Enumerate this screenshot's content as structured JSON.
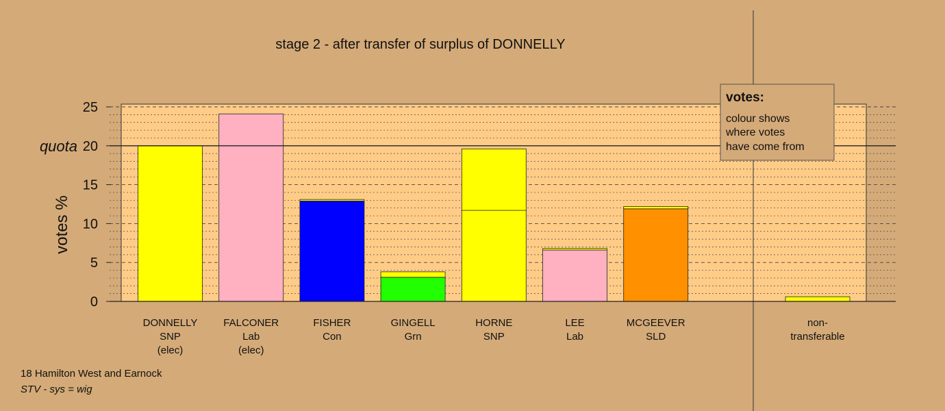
{
  "chart_data": {
    "type": "bar",
    "stacked": true,
    "title": "stage 2 - after transfer of surplus of DONNELLY",
    "ylabel": "votes %",
    "ylim": [
      0,
      25
    ],
    "yticks": [
      0,
      5,
      10,
      15,
      20,
      25
    ],
    "quota": 20,
    "quota_label": "quota",
    "grid": true,
    "categories": [
      {
        "name": "DONNELLY",
        "party": "SNP",
        "note": "(elec)"
      },
      {
        "name": "FALCONER",
        "party": "Lab",
        "note": "(elec)"
      },
      {
        "name": "FISHER",
        "party": "Con",
        "note": ""
      },
      {
        "name": "GINGELL",
        "party": "Grn",
        "note": ""
      },
      {
        "name": "HORNE",
        "party": "SNP",
        "note": ""
      },
      {
        "name": "LEE",
        "party": "Lab",
        "note": ""
      },
      {
        "name": "MCGEEVER",
        "party": "SLD",
        "note": ""
      }
    ],
    "nontransferable": {
      "label_line1": "non-",
      "label_line2": "transferable",
      "value": 0.6,
      "color": "#ffff00"
    },
    "bars": [
      {
        "segments": [
          {
            "value": 20.0,
            "color": "#ffff00"
          }
        ]
      },
      {
        "segments": [
          {
            "value": 24.1,
            "color": "#ffb0c1"
          }
        ]
      },
      {
        "segments": [
          {
            "value": 12.9,
            "color": "#0000ff"
          },
          {
            "value": 0.2,
            "color": "#ffff00"
          }
        ]
      },
      {
        "segments": [
          {
            "value": 3.1,
            "color": "#22ff00"
          },
          {
            "value": 0.7,
            "color": "#ffff00"
          }
        ]
      },
      {
        "segments": [
          {
            "value": 11.7,
            "color": "#ffff00"
          },
          {
            "value": 7.9,
            "color": "#ffff00"
          }
        ]
      },
      {
        "segments": [
          {
            "value": 6.6,
            "color": "#ffb0c1"
          },
          {
            "value": 0.2,
            "color": "#ffff00"
          }
        ]
      },
      {
        "segments": [
          {
            "value": 11.9,
            "color": "#ff9000"
          },
          {
            "value": 0.3,
            "color": "#ffff00"
          }
        ]
      }
    ],
    "legend": {
      "title": "votes:",
      "lines": [
        "colour shows",
        "where votes",
        "have come from"
      ],
      "placement": "top-right"
    }
  },
  "footer": {
    "line1": "18 Hamilton West and Earnock",
    "line2": "STV - sys = wig"
  },
  "colors": {
    "background": "#d4aa78",
    "plot_background": "#ffcc88"
  }
}
